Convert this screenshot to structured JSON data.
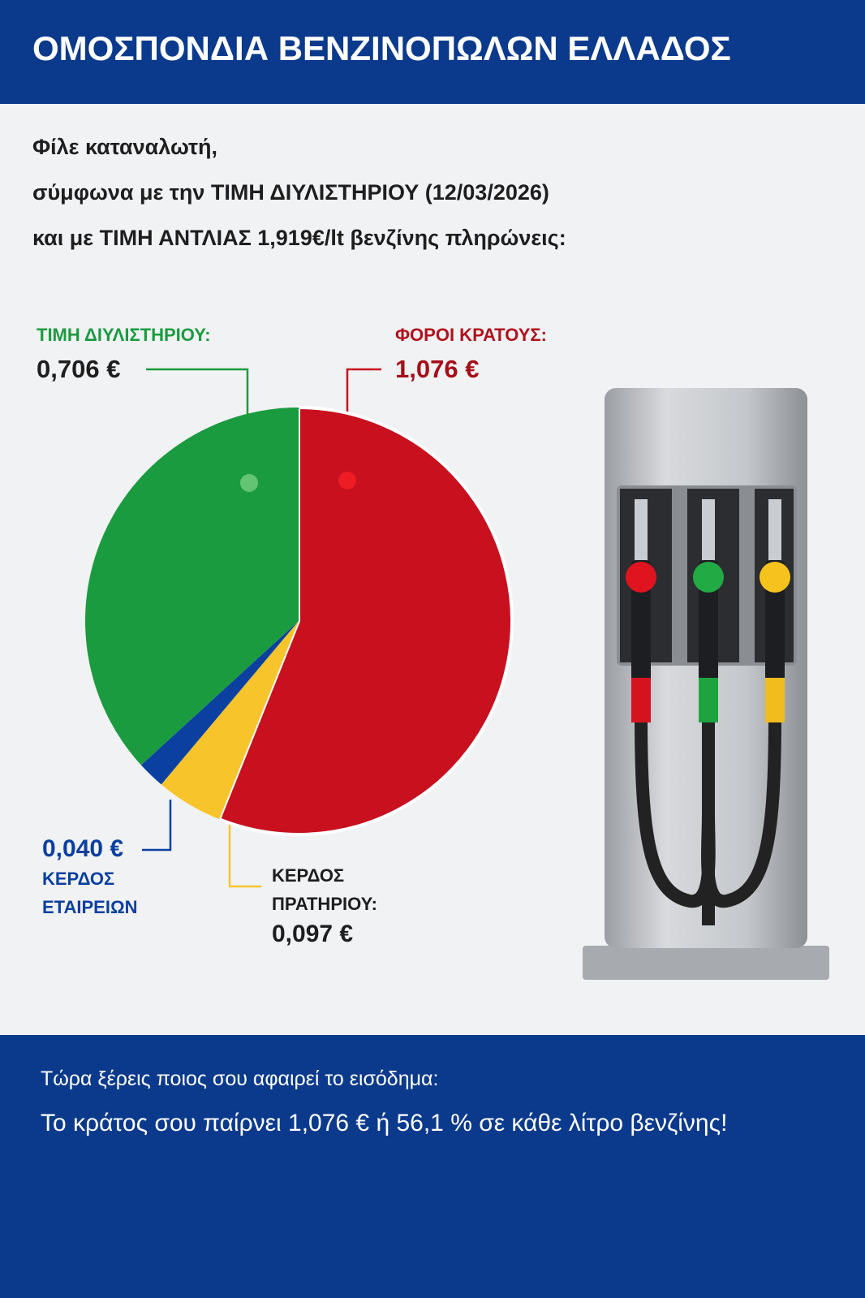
{
  "header": {
    "title": "ΟΜΟΣΠΟΝΔΙΑ ΒΕΝΖΙΝΟΠΩΛΩΝ ΕΛΛΑΔΟΣ"
  },
  "intro": {
    "lines": [
      "Φίλε καταναλωτή,",
      "σύμφωνα με την ΤΙΜΗ ΔΙΥΛΙΣΤΗΡΙΟΥ (12/03/2026)",
      "και με ΤΙΜΗ ΑΝΤΛΙΑΣ 1,919€/lt βενζίνης πληρώνεις:"
    ]
  },
  "chart_data": {
    "type": "pie",
    "categories": [
      "ΦΟΡΟΙ ΚΡΑΤΟΥΣ:",
      "ΚΕΡΔΟΣ ΠΡΑΤΗΡΙΟΥ:",
      "ΚΕΡΔΟΣ ΕΤΑΙΡΕΙΩΝ",
      "ΤΙΜΗ ΔΙΥΛΙΣΤΗΡΙΟΥ:"
    ],
    "values": [
      1.076,
      0.097,
      0.04,
      0.706
    ],
    "value_labels": [
      "1,076 €",
      "0,097 €",
      "0,040 €",
      "0,706 €"
    ],
    "colors": [
      "#c8101e",
      "#f7c52b",
      "#0b40a0",
      "#1b9b3f"
    ]
  },
  "footer": {
    "lines": [
      "Τώρα ξέρεις ποιος σου αφαιρεί το εισόδημα:",
      "Το κράτος σου παίρνει 1,076 € ή 56,1 % σε κάθε λίτρο βενζίνης!"
    ]
  }
}
